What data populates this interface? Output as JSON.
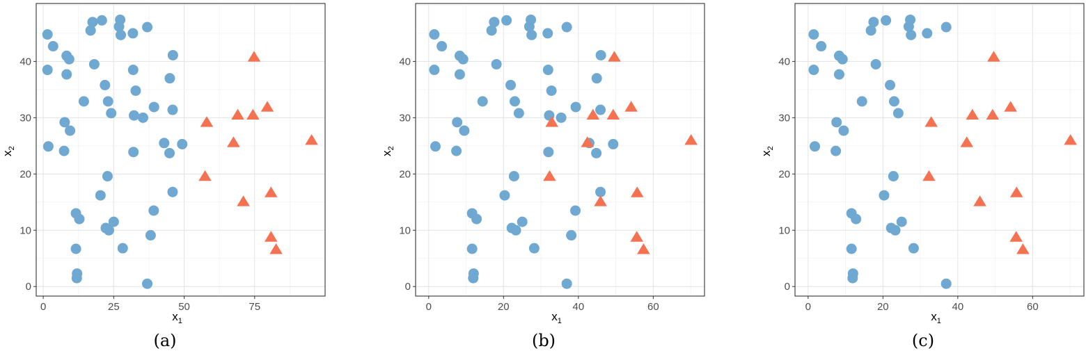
{
  "colors": {
    "circle": "#6fa8d0",
    "triangle": "#f47251"
  },
  "chart_data": [
    {
      "type": "scatter",
      "caption": "(a)",
      "xlabel": "x",
      "xlabel_sub": "1",
      "ylabel": "x",
      "ylabel_sub": "2",
      "xlim": [
        -2.5,
        100
      ],
      "ylim": [
        -1.7,
        50.3
      ],
      "xticks": [
        0,
        25,
        50,
        75
      ],
      "yticks": [
        0,
        10,
        20,
        30,
        40
      ],
      "grid": true,
      "series": [
        {
          "marker": "circle",
          "points": [
            [
              1.5,
              44.8
            ],
            [
              3.5,
              42.7
            ],
            [
              1.5,
              38.5
            ],
            [
              8.3,
              41.0
            ],
            [
              9.2,
              40.4
            ],
            [
              8.3,
              37.7
            ],
            [
              17.5,
              47.0
            ],
            [
              16.8,
              45.5
            ],
            [
              20.8,
              47.3
            ],
            [
              27.3,
              47.4
            ],
            [
              26.9,
              46.2
            ],
            [
              27.5,
              44.7
            ],
            [
              31.8,
              45.0
            ],
            [
              36.9,
              46.1
            ],
            [
              18.1,
              39.5
            ],
            [
              31.9,
              38.5
            ],
            [
              44.9,
              37.0
            ],
            [
              46.0,
              41.1
            ],
            [
              21.9,
              35.8
            ],
            [
              32.8,
              34.8
            ],
            [
              14.4,
              32.9
            ],
            [
              23.0,
              32.9
            ],
            [
              39.3,
              31.9
            ],
            [
              45.9,
              31.4
            ],
            [
              24.1,
              30.8
            ],
            [
              32.2,
              30.4
            ],
            [
              35.4,
              30.0
            ],
            [
              7.6,
              29.2
            ],
            [
              9.5,
              27.7
            ],
            [
              1.8,
              24.9
            ],
            [
              7.4,
              24.1
            ],
            [
              32.0,
              23.9
            ],
            [
              42.9,
              25.5
            ],
            [
              44.8,
              23.7
            ],
            [
              49.3,
              25.3
            ],
            [
              22.8,
              19.6
            ],
            [
              20.3,
              16.2
            ],
            [
              45.9,
              16.8
            ],
            [
              11.6,
              13.0
            ],
            [
              12.8,
              12.0
            ],
            [
              39.2,
              13.5
            ],
            [
              25.0,
              11.5
            ],
            [
              22.2,
              10.4
            ],
            [
              23.3,
              10.0
            ],
            [
              11.6,
              6.7
            ],
            [
              28.2,
              6.8
            ],
            [
              38.1,
              9.1
            ],
            [
              12.0,
              2.3
            ],
            [
              11.9,
              1.5
            ],
            [
              36.9,
              0.5
            ]
          ]
        },
        {
          "marker": "triangle",
          "points": [
            [
              74.8,
              40.7
            ],
            [
              79.5,
              31.8
            ],
            [
              69.0,
              30.4
            ],
            [
              74.4,
              30.4
            ],
            [
              58.0,
              29.1
            ],
            [
              67.5,
              25.5
            ],
            [
              95.2,
              25.9
            ],
            [
              57.4,
              19.5
            ],
            [
              80.8,
              16.6
            ],
            [
              71.0,
              15.0
            ],
            [
              80.8,
              8.7
            ],
            [
              82.6,
              6.5
            ]
          ]
        }
      ]
    },
    {
      "type": "scatter",
      "caption": "(b)",
      "xlabel": "x",
      "xlabel_sub": "1",
      "ylabel": "x",
      "ylabel_sub": "2",
      "xlim": [
        -3.5,
        73.7
      ],
      "ylim": [
        -1.7,
        50.3
      ],
      "xticks": [
        0,
        20,
        40,
        60
      ],
      "yticks": [
        0,
        10,
        20,
        30,
        40
      ],
      "grid": true,
      "series": [
        {
          "marker": "circle",
          "points": [
            [
              1.5,
              44.8
            ],
            [
              3.5,
              42.7
            ],
            [
              1.5,
              38.5
            ],
            [
              8.3,
              41.0
            ],
            [
              9.2,
              40.4
            ],
            [
              8.3,
              37.7
            ],
            [
              17.5,
              47.0
            ],
            [
              16.8,
              45.5
            ],
            [
              20.8,
              47.3
            ],
            [
              27.3,
              47.4
            ],
            [
              26.9,
              46.2
            ],
            [
              27.5,
              44.7
            ],
            [
              31.8,
              45.0
            ],
            [
              36.9,
              46.1
            ],
            [
              18.1,
              39.5
            ],
            [
              31.9,
              38.5
            ],
            [
              44.9,
              37.0
            ],
            [
              46.0,
              41.1
            ],
            [
              21.9,
              35.8
            ],
            [
              32.8,
              34.8
            ],
            [
              14.4,
              32.9
            ],
            [
              23.0,
              32.9
            ],
            [
              39.3,
              31.9
            ],
            [
              45.9,
              31.4
            ],
            [
              24.1,
              30.8
            ],
            [
              32.2,
              30.4
            ],
            [
              35.4,
              30.0
            ],
            [
              7.6,
              29.2
            ],
            [
              9.5,
              27.7
            ],
            [
              1.8,
              24.9
            ],
            [
              7.4,
              24.1
            ],
            [
              32.0,
              23.9
            ],
            [
              42.9,
              25.5
            ],
            [
              44.8,
              23.7
            ],
            [
              49.3,
              25.3
            ],
            [
              22.8,
              19.6
            ],
            [
              20.3,
              16.2
            ],
            [
              45.9,
              16.8
            ],
            [
              11.6,
              13.0
            ],
            [
              12.8,
              12.0
            ],
            [
              39.2,
              13.5
            ],
            [
              25.0,
              11.5
            ],
            [
              22.2,
              10.4
            ],
            [
              23.3,
              10.0
            ],
            [
              11.6,
              6.7
            ],
            [
              28.2,
              6.8
            ],
            [
              38.1,
              9.1
            ],
            [
              12.0,
              2.3
            ],
            [
              11.9,
              1.5
            ],
            [
              36.9,
              0.5
            ]
          ]
        },
        {
          "marker": "triangle",
          "points": [
            [
              49.6,
              40.7
            ],
            [
              54.1,
              31.8
            ],
            [
              43.9,
              30.4
            ],
            [
              49.3,
              30.4
            ],
            [
              32.9,
              29.1
            ],
            [
              42.4,
              25.5
            ],
            [
              70.1,
              25.9
            ],
            [
              32.3,
              19.5
            ],
            [
              55.7,
              16.6
            ],
            [
              45.9,
              15.0
            ],
            [
              55.6,
              8.7
            ],
            [
              57.4,
              6.5
            ]
          ]
        }
      ]
    },
    {
      "type": "scatter",
      "caption": "(c)",
      "xlabel": "x",
      "xlabel_sub": "1",
      "ylabel": "x",
      "ylabel_sub": "2",
      "xlim": [
        -3.5,
        73.7
      ],
      "ylim": [
        -1.7,
        50.3
      ],
      "xticks": [
        0,
        20,
        40,
        60
      ],
      "yticks": [
        0,
        10,
        20,
        30,
        40
      ],
      "grid": true,
      "series": [
        {
          "marker": "circle",
          "points": [
            [
              1.5,
              44.8
            ],
            [
              3.5,
              42.7
            ],
            [
              1.5,
              38.5
            ],
            [
              8.3,
              41.0
            ],
            [
              9.2,
              40.4
            ],
            [
              8.3,
              37.7
            ],
            [
              17.5,
              47.0
            ],
            [
              16.8,
              45.5
            ],
            [
              20.8,
              47.3
            ],
            [
              27.3,
              47.4
            ],
            [
              26.9,
              46.2
            ],
            [
              27.5,
              44.7
            ],
            [
              31.8,
              45.0
            ],
            [
              36.9,
              46.1
            ],
            [
              18.1,
              39.5
            ],
            [
              21.9,
              35.8
            ],
            [
              14.4,
              32.9
            ],
            [
              23.0,
              32.9
            ],
            [
              24.1,
              30.8
            ],
            [
              7.6,
              29.2
            ],
            [
              9.5,
              27.7
            ],
            [
              1.8,
              24.9
            ],
            [
              7.4,
              24.1
            ],
            [
              22.8,
              19.6
            ],
            [
              20.3,
              16.2
            ],
            [
              11.6,
              13.0
            ],
            [
              12.8,
              12.0
            ],
            [
              25.0,
              11.5
            ],
            [
              22.2,
              10.4
            ],
            [
              23.3,
              10.0
            ],
            [
              11.6,
              6.7
            ],
            [
              28.2,
              6.8
            ],
            [
              12.0,
              2.3
            ],
            [
              11.9,
              1.5
            ],
            [
              36.9,
              0.5
            ]
          ]
        },
        {
          "marker": "triangle",
          "points": [
            [
              49.6,
              40.7
            ],
            [
              54.1,
              31.8
            ],
            [
              43.9,
              30.4
            ],
            [
              49.3,
              30.4
            ],
            [
              32.9,
              29.1
            ],
            [
              42.4,
              25.5
            ],
            [
              70.1,
              25.9
            ],
            [
              32.3,
              19.5
            ],
            [
              55.7,
              16.6
            ],
            [
              45.9,
              15.0
            ],
            [
              55.6,
              8.7
            ],
            [
              57.4,
              6.5
            ]
          ]
        }
      ]
    }
  ]
}
